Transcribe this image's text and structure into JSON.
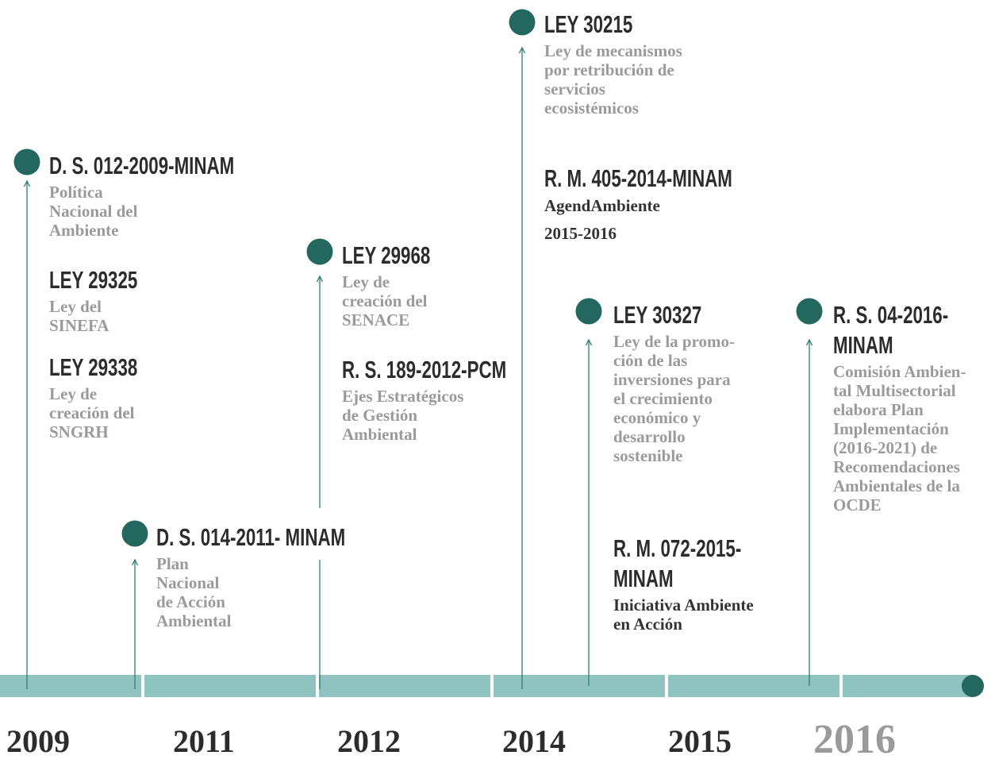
{
  "events": [
    {
      "items": [
        {
          "title": [
            "D. S. 012-2009-MINAM"
          ],
          "description": [
            "Política",
            "Nacional del",
            "Ambiente"
          ]
        },
        {
          "title": [
            "LEY 29325"
          ],
          "description": [
            "Ley del",
            "SINEFA"
          ]
        },
        {
          "title": [
            "LEY 29338"
          ],
          "description": [
            "Ley de",
            "creación del",
            "SNGRH"
          ]
        }
      ]
    },
    {
      "items": [
        {
          "title": [
            "D. S. 014-2011- MINAM"
          ],
          "description": [
            "Plan",
            "Nacional",
            "de Acción",
            "Ambiental"
          ]
        }
      ]
    },
    {
      "items": [
        {
          "title": [
            "LEY 29968"
          ],
          "description": [
            "Ley de",
            "creación del",
            "SENACE"
          ]
        },
        {
          "title": [
            "R. S. 189-2012-PCM"
          ],
          "description": [
            "Ejes Estratégicos",
            "de Gestión",
            "Ambiental"
          ]
        }
      ]
    },
    {
      "items": [
        {
          "title": [
            "LEY 30215"
          ],
          "description": [
            "Ley de mecanismos",
            "por retribución de",
            "servicios",
            "ecosistémicos"
          ]
        },
        {
          "title": [
            "R. M. 405-2014-MINAM"
          ],
          "description": [
            "AgendAmbiente",
            "2015-2016"
          ]
        }
      ]
    },
    {
      "items": [
        {
          "title": [
            "LEY 30327"
          ],
          "description": [
            "Ley de la promo-",
            "ción de las",
            "inversiones para",
            "el crecimiento",
            "económico y",
            "desarrollo",
            "sostenible"
          ]
        },
        {
          "title": [
            "R. M. 072-2015-",
            "MINAM"
          ],
          "description": [
            "Iniciativa Ambiente",
            "en Acción"
          ]
        }
      ]
    },
    {
      "items": [
        {
          "title": [
            "R. S. 04-2016-",
            "MINAM"
          ],
          "description": [
            "Comisión Ambien-",
            "tal Multisectorial",
            "elabora Plan",
            "Implementación",
            "(2016-2021) de",
            "Recomendaciones",
            "Ambientales de la",
            "OCDE"
          ]
        }
      ]
    }
  ],
  "years": [
    "2009",
    "2011",
    "2012",
    "2014",
    "2015",
    "2016"
  ]
}
